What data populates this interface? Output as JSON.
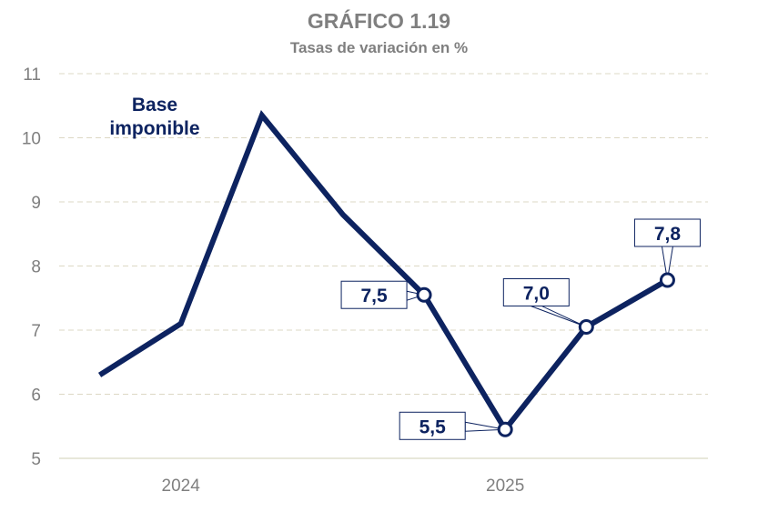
{
  "chart_data": {
    "type": "line",
    "title": "GRÁFICO 1.19",
    "subtitle": "Tasas de variación en %",
    "xlabel": "",
    "ylabel": "",
    "categories": [
      "",
      "2024",
      "",
      "",
      "",
      "2025",
      "",
      ""
    ],
    "series": [
      {
        "name": "Base imponible",
        "values": [
          6.3,
          7.1,
          10.35,
          8.8,
          7.55,
          5.45,
          7.05,
          7.78
        ],
        "color": "#0d2360"
      }
    ],
    "data_labels": [
      {
        "index": 4,
        "text": "7,5"
      },
      {
        "index": 5,
        "text": "5,5"
      },
      {
        "index": 6,
        "text": "7,0"
      },
      {
        "index": 7,
        "text": "7,8"
      }
    ],
    "ylim": [
      5,
      11
    ],
    "yticks": [
      "5",
      "6",
      "7",
      "8",
      "9",
      "10",
      "11"
    ],
    "grid": true,
    "legend": "top-left"
  }
}
